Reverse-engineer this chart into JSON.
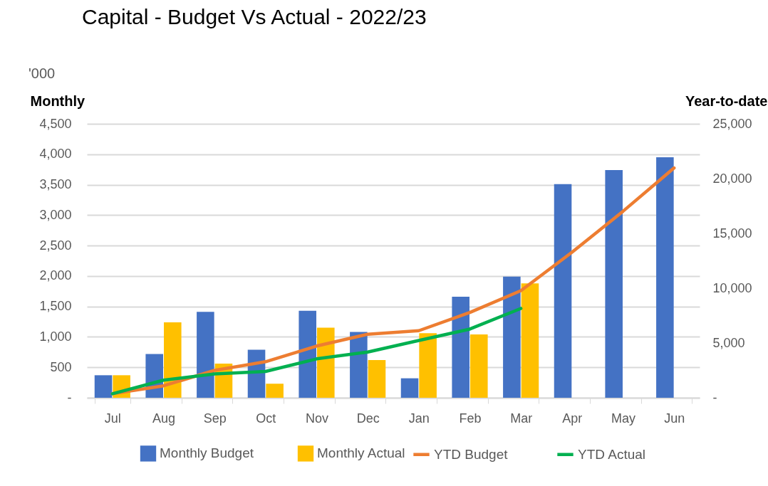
{
  "chart_data": {
    "type": "bar",
    "title": "Capital - Budget Vs Actual - 2022/23",
    "ylabel": "Monthly",
    "y2label": "Year-to-date",
    "annotations": [
      "'000"
    ],
    "categories": [
      "Jul",
      "Aug",
      "Sep",
      "Oct",
      "Nov",
      "Dec",
      "Jan",
      "Feb",
      "Mar",
      "Apr",
      "May",
      "Jun"
    ],
    "series": [
      {
        "name": "Monthly Budget",
        "color": "#4472c4",
        "values": [
          370,
          720,
          1410,
          790,
          1430,
          1080,
          320,
          1660,
          1990,
          3510,
          3740,
          3950
        ]
      },
      {
        "name": "Monthly Actual",
        "color": "#ffc000",
        "values": [
          370,
          1240,
          560,
          230,
          1150,
          620,
          1060,
          1040,
          1880,
          null,
          null,
          null
        ]
      },
      {
        "name": "YTD Budget",
        "type": "line",
        "axis": "y2",
        "color": "#ed7d31",
        "values": [
          370,
          1090,
          2500,
          3290,
          4720,
          5800,
          6120,
          7780,
          9770,
          13280,
          17020,
          20970
        ]
      },
      {
        "name": "YTD Actual",
        "type": "line",
        "axis": "y2",
        "color": "#00b050",
        "values": [
          370,
          1610,
          2170,
          2400,
          3550,
          4170,
          5230,
          6270,
          8150,
          null,
          null,
          null
        ]
      }
    ],
    "ylim": [
      0,
      4500
    ],
    "yticks": [
      {
        "value": 0,
        "label": "-"
      },
      500,
      {
        "value": 1000,
        "label": "1,000"
      },
      {
        "value": 1500,
        "label": "1,500"
      },
      {
        "value": 2000,
        "label": "2,000"
      },
      {
        "value": 2500,
        "label": "2,500"
      },
      {
        "value": 3000,
        "label": "3,000"
      },
      {
        "value": 3500,
        "label": "3,500"
      },
      {
        "value": 4000,
        "label": "4,000"
      },
      {
        "value": 4500,
        "label": "4,500"
      }
    ],
    "y2lim": [
      0,
      25000
    ],
    "y2ticks": [
      {
        "value": 0,
        "label": "-"
      },
      {
        "value": 5000,
        "label": "5,000"
      },
      {
        "value": 10000,
        "label": "10,000"
      },
      {
        "value": 15000,
        "label": "15,000"
      },
      {
        "value": 20000,
        "label": "20,000"
      },
      {
        "value": 25000,
        "label": "25,000"
      }
    ],
    "grid": "y",
    "legend": "bottom",
    "line_style": "solid"
  }
}
